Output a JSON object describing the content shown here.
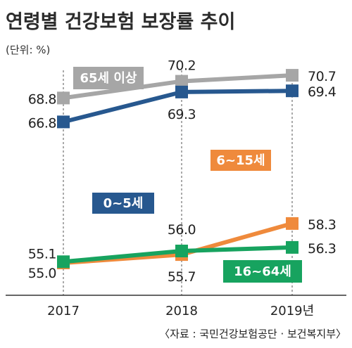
{
  "title": "연령별 건강보험 보장률 추이",
  "unit": "(단위: %)",
  "source": "〈자료 : 국민건강보험공단 · 보건복지부〉",
  "chart_data": {
    "type": "line",
    "title": "연령별 건강보험 보장률 추이",
    "ylabel": "%",
    "categories": [
      "2017",
      "2018",
      "2019년"
    ],
    "ylim": [
      53,
      72
    ],
    "grid": false,
    "series": [
      {
        "name": "65세 이상",
        "color": "#a6a6a6",
        "values": [
          68.8,
          70.2,
          70.7
        ],
        "labels": [
          "68.8",
          "70.2",
          "70.7"
        ]
      },
      {
        "name": "0~5세",
        "color": "#27588f",
        "values": [
          66.8,
          69.3,
          69.4
        ],
        "labels": [
          "66.8",
          "69.3",
          "69.4"
        ]
      },
      {
        "name": "6~15세",
        "color": "#ef8a3c",
        "values": [
          55.0,
          55.7,
          58.3
        ],
        "labels": [
          "55.0",
          "55.7",
          "58.3"
        ]
      },
      {
        "name": "16~64세",
        "color": "#17a35f",
        "values": [
          55.1,
          56.0,
          56.3
        ],
        "labels": [
          "55.1",
          "56.0",
          "56.3"
        ]
      }
    ]
  }
}
